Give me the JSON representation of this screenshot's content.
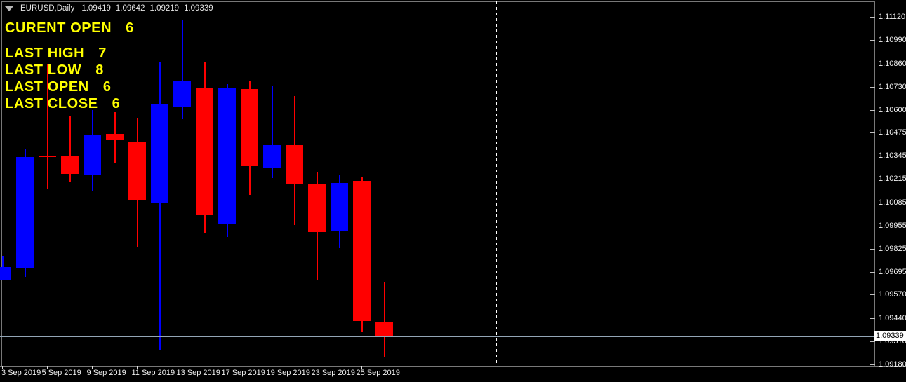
{
  "window": {
    "title_bar": {
      "symbol_label": "EURUSD,Daily",
      "quotes": [
        "1.09419",
        "1.09642",
        "1.09219",
        "1.09339"
      ]
    }
  },
  "overlay_labels": [
    {
      "label": "CURENT OPEN",
      "value": "6"
    },
    {
      "label": "LAST HIGH",
      "value": "7"
    },
    {
      "label": "LAST LOW",
      "value": "8"
    },
    {
      "label": "LAST OPEN",
      "value": "6"
    },
    {
      "label": "LAST CLOSE",
      "value": "6"
    }
  ],
  "price_axis": {
    "labels": [
      "1.11120",
      "1.10990",
      "1.10860",
      "1.10730",
      "1.10600",
      "1.10475",
      "1.10345",
      "1.10215",
      "1.10085",
      "1.09955",
      "1.09825",
      "1.09695",
      "1.09570",
      "1.09440",
      "1.09310",
      "1.09180"
    ],
    "current_price_label": "1.09339"
  },
  "time_axis": {
    "ticks": [
      {
        "candle_index": 0,
        "label": "3 Sep 2019"
      },
      {
        "candle_index": 2,
        "label": "5 Sep 2019"
      },
      {
        "candle_index": 4,
        "label": "9 Sep 2019"
      },
      {
        "candle_index": 6,
        "label": "11 Sep 2019"
      },
      {
        "candle_index": 8,
        "label": "13 Sep 2019"
      },
      {
        "candle_index": 10,
        "label": "17 Sep 2019"
      },
      {
        "candle_index": 12,
        "label": "19 Sep 2019"
      },
      {
        "candle_index": 14,
        "label": "23 Sep 2019"
      },
      {
        "candle_index": 16,
        "label": "25 Sep 2019"
      }
    ]
  },
  "colors": {
    "background": "#000000",
    "bull": "#0000ff",
    "bear": "#ff0000",
    "overlay_text": "#ffff00",
    "price_line": "#93a5b5",
    "price_box_bg": "#ffffff",
    "price_box_text": "#000000",
    "axis_text": "#f2f2f2",
    "frame": "#787878",
    "separator_dash": "#ffffff"
  },
  "chart_data": {
    "type": "candlestick",
    "symbol": "EURUSD",
    "timeframe": "Daily",
    "ylim": [
      1.0918,
      1.1112
    ],
    "current_price": 1.09339,
    "time_separator_slot": 22,
    "legend_position": "none",
    "grid": false,
    "candles": [
      {
        "date": "3 Sep 2019",
        "open": 1.0965,
        "high": 1.09787,
        "low": 1.0965,
        "close": 1.09724
      },
      {
        "date": "4 Sep 2019",
        "open": 1.09716,
        "high": 1.10385,
        "low": 1.09669,
        "close": 1.10338
      },
      {
        "date": "5 Sep 2019",
        "open": 1.10342,
        "high": 1.10854,
        "low": 1.10162,
        "close": 1.10338
      },
      {
        "date": "6 Sep 2019",
        "open": 1.10342,
        "high": 1.10569,
        "low": 1.10197,
        "close": 1.10244
      },
      {
        "date": "9 Sep 2019",
        "open": 1.1024,
        "high": 1.106,
        "low": 1.10146,
        "close": 1.10463
      },
      {
        "date": "10 Sep 2019",
        "open": 1.10467,
        "high": 1.10588,
        "low": 1.10307,
        "close": 1.10432
      },
      {
        "date": "11 Sep 2019",
        "open": 1.10424,
        "high": 1.10553,
        "low": 1.09838,
        "close": 1.10096
      },
      {
        "date": "12 Sep 2019",
        "open": 1.10084,
        "high": 1.1087,
        "low": 1.09261,
        "close": 1.10635
      },
      {
        "date": "13 Sep 2019",
        "open": 1.1062,
        "high": 1.11101,
        "low": 1.10549,
        "close": 1.10764
      },
      {
        "date": "16 Sep 2019",
        "open": 1.10721,
        "high": 1.1087,
        "low": 1.09916,
        "close": 1.10013
      },
      {
        "date": "17 Sep 2019",
        "open": 1.09962,
        "high": 1.10745,
        "low": 1.09892,
        "close": 1.10721
      },
      {
        "date": "18 Sep 2019",
        "open": 1.10717,
        "high": 1.10764,
        "low": 1.10127,
        "close": 1.10287
      },
      {
        "date": "19 Sep 2019",
        "open": 1.10276,
        "high": 1.10733,
        "low": 1.10221,
        "close": 1.10405
      },
      {
        "date": "20 Sep 2019",
        "open": 1.10405,
        "high": 1.10678,
        "low": 1.09959,
        "close": 1.10186
      },
      {
        "date": "23 Sep 2019",
        "open": 1.10186,
        "high": 1.10256,
        "low": 1.0965,
        "close": 1.0992
      },
      {
        "date": "24 Sep 2019",
        "open": 1.09928,
        "high": 1.1024,
        "low": 1.0983,
        "close": 1.10193
      },
      {
        "date": "25 Sep 2019",
        "open": 1.10205,
        "high": 1.10225,
        "low": 1.0936,
        "close": 1.09423
      },
      {
        "date": "26 Sep 2019",
        "open": 1.09419,
        "high": 1.09642,
        "low": 1.09219,
        "close": 1.09339
      }
    ]
  }
}
